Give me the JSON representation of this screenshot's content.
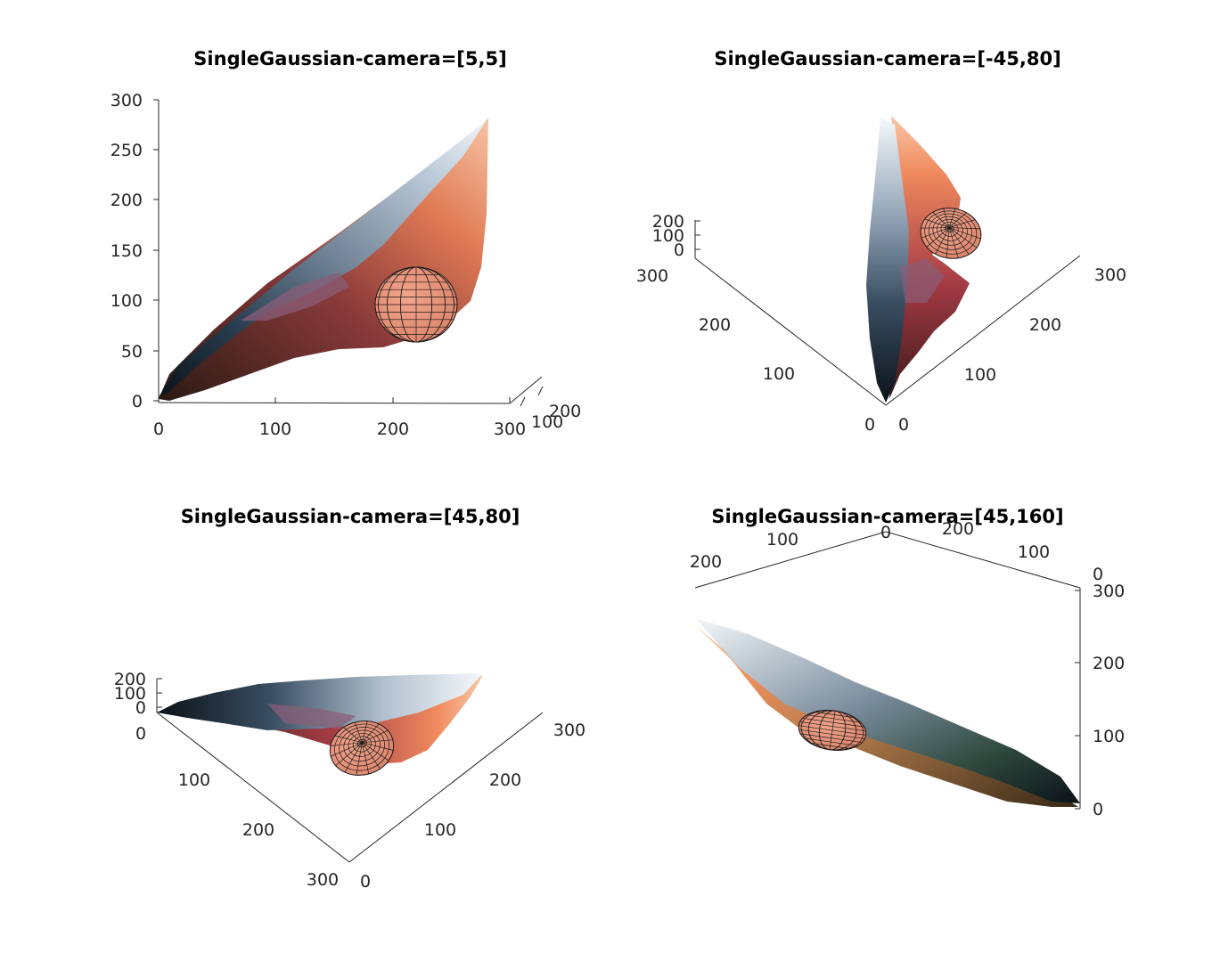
{
  "chart_data": [
    {
      "type": "scatter",
      "title": "SingleGaussian-camera=[5,5]",
      "view": [
        5,
        5
      ],
      "x_ticks": [
        "0",
        "100",
        "200",
        "300"
      ],
      "y_ticks": [
        "100",
        "200"
      ],
      "z_ticks": [
        "0",
        "50",
        "100",
        "150",
        "200",
        "250",
        "300"
      ],
      "xlim": [
        0,
        300
      ],
      "ylim": [
        0,
        300
      ],
      "zlim": [
        0,
        300
      ],
      "gaussian_mean": [
        225,
        170,
        140
      ]
    },
    {
      "type": "scatter",
      "title": "SingleGaussian-camera=[-45,80]",
      "view": [
        -45,
        80
      ],
      "x_ticks": [
        "0",
        "100",
        "200",
        "300"
      ],
      "y_ticks": [
        "0",
        "100",
        "200",
        "300"
      ],
      "z_ticks": [
        "0",
        "100",
        "200"
      ],
      "xlim": [
        0,
        300
      ],
      "ylim": [
        0,
        300
      ],
      "zlim": [
        0,
        300
      ],
      "gaussian_mean": [
        225,
        170,
        140
      ]
    },
    {
      "type": "scatter",
      "title": "SingleGaussian-camera=[45,80]",
      "view": [
        45,
        80
      ],
      "x_ticks": [
        "0",
        "100",
        "200",
        "300"
      ],
      "y_ticks": [
        "0",
        "100",
        "200",
        "300"
      ],
      "z_ticks": [
        "0",
        "100",
        "200"
      ],
      "xlim": [
        0,
        300
      ],
      "ylim": [
        0,
        300
      ],
      "zlim": [
        0,
        300
      ],
      "gaussian_mean": [
        225,
        170,
        140
      ]
    },
    {
      "type": "scatter",
      "title": "SingleGaussian-camera=[45,160]",
      "view": [
        45,
        160
      ],
      "x_ticks": [
        "0",
        "100",
        "200"
      ],
      "y_ticks": [
        "0",
        "100",
        "200"
      ],
      "z_ticks": [
        "0",
        "100",
        "200",
        "300"
      ],
      "xlim": [
        0,
        300
      ],
      "ylim": [
        0,
        300
      ],
      "zlim": [
        0,
        300
      ],
      "gaussian_mean": [
        225,
        170,
        140
      ]
    }
  ]
}
